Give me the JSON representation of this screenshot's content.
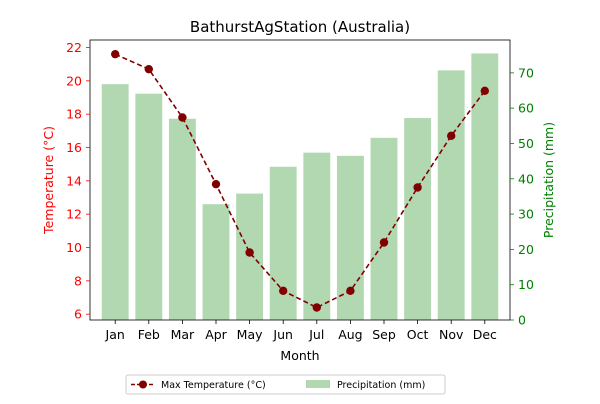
{
  "chart_data": {
    "type": "bar+line",
    "title": "BathurstAgStation (Australia)",
    "xlabel": "Month",
    "ylabel_left": "Temperature (°C)",
    "ylabel_right": "Precipitation (mm)",
    "categories": [
      "Jan",
      "Feb",
      "Mar",
      "Apr",
      "May",
      "Jun",
      "Jul",
      "Aug",
      "Sep",
      "Oct",
      "Nov",
      "Dec"
    ],
    "ylim_left": [
      5.65,
      22.45
    ],
    "ylim_right": [
      0,
      79.3
    ],
    "yticks_left": [
      6,
      8,
      10,
      12,
      14,
      16,
      18,
      20,
      22
    ],
    "yticks_right": [
      0,
      10,
      20,
      30,
      40,
      50,
      60,
      70
    ],
    "series": [
      {
        "name": "Max Temperature (°C)",
        "type": "line",
        "axis": "left",
        "color": "#800000",
        "values": [
          21.6,
          20.7,
          17.8,
          13.8,
          9.7,
          7.4,
          6.4,
          7.4,
          10.3,
          13.6,
          16.7,
          19.4
        ]
      },
      {
        "name": "Precipitation (mm)",
        "type": "bar",
        "axis": "right",
        "color": "#b2d8b2",
        "values": [
          66.8,
          64.1,
          57.0,
          32.8,
          35.8,
          43.4,
          47.4,
          46.5,
          51.6,
          57.2,
          70.7,
          75.5
        ]
      }
    ],
    "legend_position": "bottom-center",
    "colors": {
      "left_axis": "#ff0000",
      "right_axis": "#008000"
    }
  }
}
